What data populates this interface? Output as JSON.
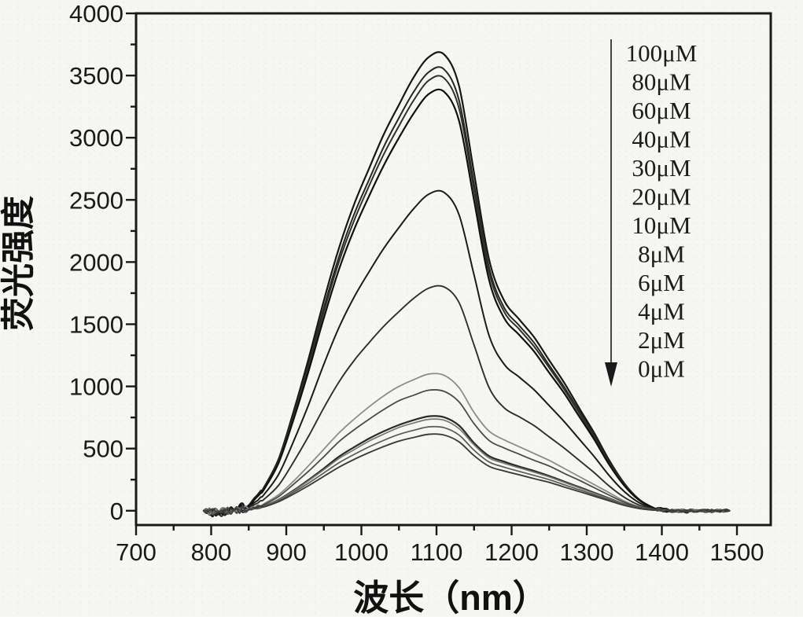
{
  "figure": {
    "background": "#f6f6f2",
    "ink_color": "#1a1a1a"
  },
  "chart_data": {
    "type": "line",
    "title": "",
    "xlabel": "波长（nm）",
    "ylabel": "荧光强度",
    "x_axis": {
      "domain": [
        700,
        1545
      ],
      "major_ticks": [
        700,
        800,
        900,
        1000,
        1100,
        1200,
        1300,
        1400,
        1500
      ],
      "minor_step": 50,
      "tick_labels": [
        "700",
        "800",
        "900",
        "1000",
        "1100",
        "1200",
        "1300",
        "1400",
        "1500"
      ]
    },
    "y_axis": {
      "domain": [
        -115,
        4000
      ],
      "major_ticks": [
        0,
        500,
        1000,
        1500,
        2000,
        2500,
        3000,
        3500,
        4000
      ],
      "minor_step": 250,
      "tick_labels": [
        "0",
        "500",
        "1000",
        "1500",
        "2000",
        "2500",
        "3000",
        "3500",
        "4000"
      ]
    },
    "grid": false,
    "legend": {
      "position": "upper-right",
      "arrow_direction": "down",
      "items": [
        "100μM",
        "80μM",
        "60μM",
        "40μM",
        "30μM",
        "20μM",
        "10μM",
        "8μM",
        "6μM",
        "4μM",
        "2μM",
        "0μM"
      ]
    },
    "noise": {
      "baseline_amp": 10,
      "start_blob_amp": 28
    },
    "x": [
      790,
      810,
      830,
      850,
      870,
      890,
      910,
      930,
      950,
      970,
      990,
      1010,
      1030,
      1050,
      1070,
      1090,
      1110,
      1130,
      1150,
      1170,
      1190,
      1210,
      1230,
      1250,
      1270,
      1290,
      1310,
      1330,
      1350,
      1370,
      1390,
      1410,
      1430,
      1450,
      1470,
      1490
    ],
    "series": [
      {
        "name": "100μM",
        "peak": 3670,
        "color": "#161616",
        "width": 2.2,
        "values": [
          0,
          -30,
          10,
          45,
          185,
          420,
          805,
          1230,
          1690,
          2110,
          2460,
          2750,
          3030,
          3265,
          3490,
          3650,
          3670,
          3415,
          2715,
          2020,
          1690,
          1540,
          1395,
          1210,
          1030,
          825,
          625,
          405,
          220,
          90,
          20,
          5,
          -10,
          5,
          -5,
          0
        ]
      },
      {
        "name": "80μM",
        "peak": 3550,
        "color": "#262626",
        "width": 2.0,
        "values": [
          0,
          -25,
          8,
          42,
          178,
          408,
          780,
          1190,
          1633,
          2040,
          2380,
          2660,
          2930,
          3160,
          3373,
          3530,
          3550,
          3300,
          2625,
          1955,
          1633,
          1490,
          1350,
          1170,
          995,
          800,
          605,
          390,
          215,
          88,
          18,
          -5,
          8,
          -4,
          3,
          0
        ]
      },
      {
        "name": "60μM",
        "peak": 3480,
        "color": "#303030",
        "width": 2.0,
        "values": [
          0,
          -28,
          6,
          42,
          174,
          400,
          765,
          1165,
          1600,
          2000,
          2330,
          2610,
          2870,
          3095,
          3305,
          3462,
          3480,
          3235,
          2575,
          1915,
          1600,
          1460,
          1320,
          1150,
          975,
          785,
          590,
          385,
          210,
          87,
          20,
          4,
          -6,
          3,
          -2,
          0
        ]
      },
      {
        "name": "40μM",
        "peak": 3370,
        "color": "#101010",
        "width": 2.2,
        "values": [
          0,
          -27,
          7,
          40,
          168,
          388,
          740,
          1130,
          1550,
          1938,
          2258,
          2528,
          2780,
          3000,
          3200,
          3353,
          3370,
          3135,
          2495,
          1855,
          1550,
          1415,
          1280,
          1110,
          945,
          758,
          573,
          370,
          202,
          84,
          20,
          -4,
          6,
          -3,
          2,
          0
        ]
      },
      {
        "name": "30μM",
        "peak": 2560,
        "color": "#1b1b1b",
        "width": 2.0,
        "values": [
          0,
          -20,
          5,
          30,
          128,
          295,
          563,
          858,
          1178,
          1472,
          1715,
          1920,
          2112,
          2278,
          2432,
          2547,
          2560,
          2380,
          1895,
          1408,
          1178,
          1075,
          972,
          845,
          717,
          576,
          435,
          282,
          154,
          64,
          15,
          3,
          -5,
          3,
          -2,
          0
        ]
      },
      {
        "name": "20μM",
        "peak": 1800,
        "color": "#2e2e2e",
        "width": 1.9,
        "values": [
          0,
          -14,
          4,
          22,
          90,
          207,
          396,
          603,
          828,
          1035,
          1206,
          1350,
          1485,
          1602,
          1710,
          1791,
          1800,
          1674,
          1332,
          990,
          828,
          756,
          684,
          594,
          504,
          405,
          306,
          198,
          108,
          45,
          11,
          2,
          -4,
          2,
          -2,
          0
        ]
      },
      {
        "name": "10μM",
        "peak": 1100,
        "color": "#8c8c8c",
        "width": 1.8,
        "values": [
          0,
          -10,
          5,
          15,
          55,
          130,
          240,
          365,
          495,
          625,
          735,
          835,
          925,
          1000,
          1055,
          1100,
          1090,
          990,
          790,
          640,
          570,
          515,
          460,
          405,
          340,
          275,
          210,
          145,
          78,
          32,
          9,
          0,
          -4,
          3,
          -2,
          0
        ]
      },
      {
        "name": "8μM",
        "peak": 970,
        "color": "#4a4a4a",
        "width": 1.8,
        "values": [
          0,
          -8,
          4,
          12,
          48,
          115,
          215,
          320,
          435,
          555,
          650,
          735,
          815,
          885,
          930,
          970,
          960,
          875,
          700,
          565,
          505,
          455,
          405,
          360,
          300,
          245,
          185,
          125,
          68,
          28,
          8,
          -3,
          4,
          -2,
          2,
          0
        ]
      },
      {
        "name": "6μM",
        "peak": 760,
        "color": "#2a2a2a",
        "width": 2.2,
        "values": [
          0,
          -7,
          3,
          10,
          38,
          90,
          165,
          250,
          340,
          435,
          510,
          580,
          640,
          690,
          730,
          760,
          752,
          685,
          545,
          440,
          395,
          355,
          320,
          280,
          235,
          190,
          145,
          100,
          53,
          22,
          6,
          2,
          -3,
          2,
          -1,
          0
        ]
      },
      {
        "name": "4μM",
        "peak": 735,
        "color": "#767676",
        "width": 1.7,
        "values": [
          0,
          -7,
          3,
          9,
          37,
          88,
          160,
          243,
          330,
          420,
          490,
          560,
          617,
          670,
          706,
          735,
          728,
          660,
          530,
          425,
          382,
          345,
          310,
          272,
          228,
          184,
          140,
          96,
          51,
          22,
          6,
          -2,
          3,
          -1,
          1,
          0
        ]
      },
      {
        "name": "2μM",
        "peak": 675,
        "color": "#5a5a5a",
        "width": 1.7,
        "values": [
          0,
          -6,
          3,
          8,
          34,
          81,
          149,
          223,
          304,
          385,
          452,
          513,
          567,
          614,
          648,
          675,
          668,
          608,
          486,
          392,
          351,
          317,
          284,
          250,
          209,
          169,
          128,
          88,
          47,
          20,
          5,
          2,
          -2,
          1,
          -1,
          0
        ]
      },
      {
        "name": "0μM",
        "peak": 615,
        "color": "#3c3c3c",
        "width": 1.9,
        "values": [
          0,
          -6,
          2,
          7,
          31,
          74,
          135,
          203,
          277,
          350,
          412,
          467,
          517,
          560,
          590,
          615,
          609,
          554,
          443,
          357,
          320,
          289,
          258,
          228,
          191,
          154,
          117,
          80,
          43,
          18,
          5,
          -2,
          2,
          -1,
          1,
          0
        ]
      }
    ]
  }
}
